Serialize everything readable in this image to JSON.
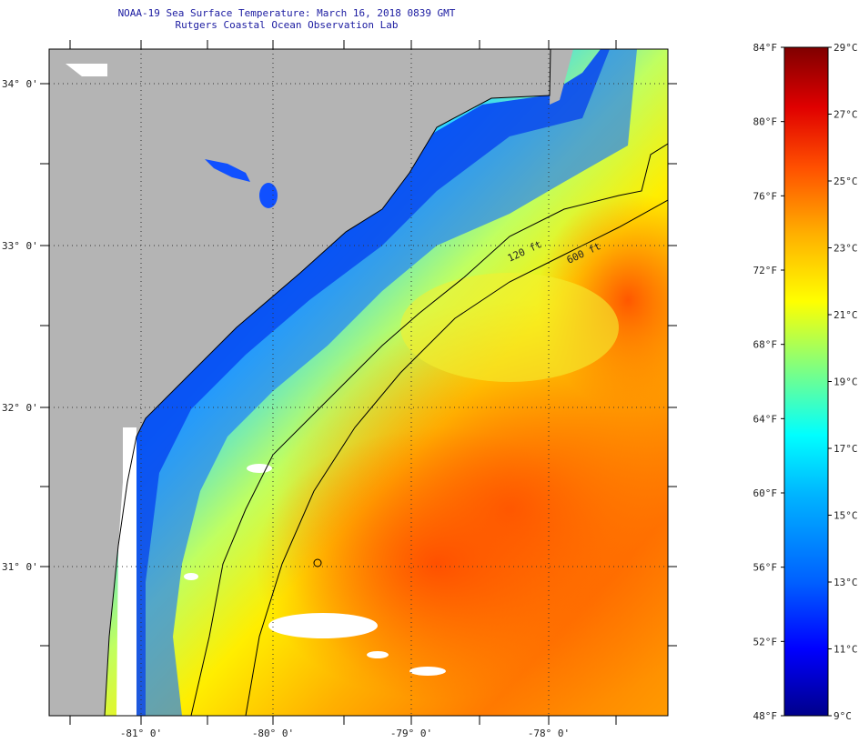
{
  "title": {
    "line1": "NOAA-19 Sea Surface Temperature:  March 16, 2018 0839 GMT",
    "line2": "Rutgers Coastal Ocean Observation Lab"
  },
  "map": {
    "lat_labels": [
      "34° 0'",
      "33° 0'",
      "32° 0'",
      "31° 0'"
    ],
    "lon_labels": [
      "-81° 0'",
      "-80° 0'",
      "-79° 0'",
      "-78° 0'"
    ],
    "contours": [
      "120 ft",
      "600 ft"
    ],
    "colors": {
      "land": "#b4b4b4",
      "cloud": "#ffffff",
      "grid": "#333333",
      "contour": "#000000"
    }
  },
  "colorbar": {
    "fahrenheit": [
      "84°F",
      "80°F",
      "76°F",
      "72°F",
      "68°F",
      "64°F",
      "60°F",
      "56°F",
      "52°F",
      "48°F"
    ],
    "celsius": [
      "29°C",
      "27°C",
      "25°C",
      "23°C",
      "21°C",
      "19°C",
      "17°C",
      "15°C",
      "13°C",
      "11°C",
      "9°C"
    ],
    "range_f": [
      48,
      84
    ],
    "stops": [
      "#00008a",
      "#0000ff",
      "#0060ff",
      "#00b4ff",
      "#00ffff",
      "#80ff80",
      "#ffff00",
      "#ffb000",
      "#ff5000",
      "#e00000",
      "#800000"
    ]
  }
}
